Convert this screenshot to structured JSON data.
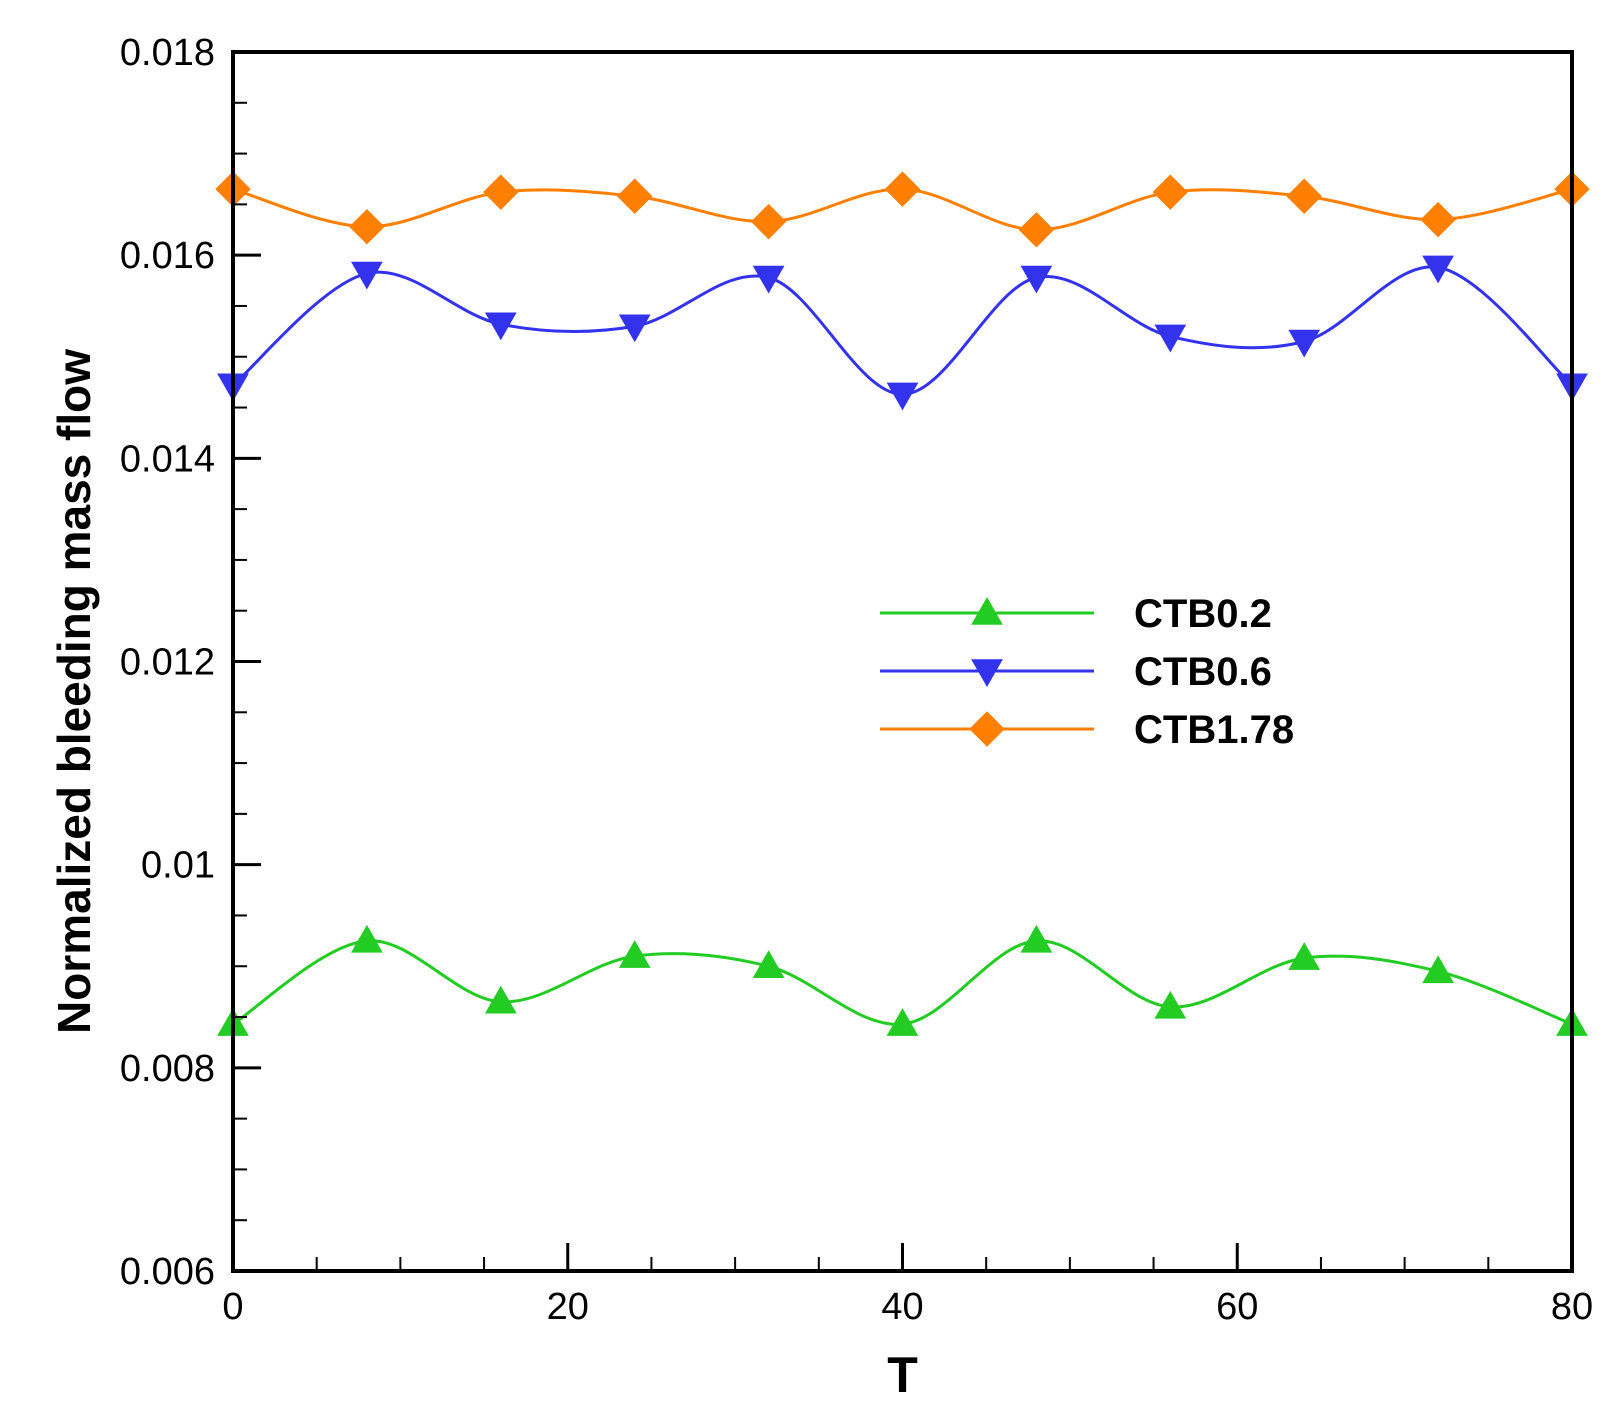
{
  "chart_data": {
    "type": "line",
    "title": "",
    "xlabel": "T",
    "ylabel": "Normalized bleeding mass flow",
    "xlim": [
      0,
      80
    ],
    "ylim": [
      0.006,
      0.018
    ],
    "x_ticks": [
      0,
      20,
      40,
      60,
      80
    ],
    "x_tick_labels": [
      "0",
      "20",
      "40",
      "60",
      "80"
    ],
    "y_ticks": [
      0.006,
      0.008,
      0.01,
      0.012,
      0.014,
      0.016,
      0.018
    ],
    "y_tick_labels": [
      "0.006",
      "0.008",
      "0.01",
      "0.012",
      "0.014",
      "0.016",
      "0.018"
    ],
    "x_minor_step": 5,
    "y_minor_step": 0.0005,
    "grid": false,
    "legend_position": "center-right",
    "x": [
      0,
      8,
      16,
      24,
      32,
      40,
      48,
      56,
      64,
      72,
      80
    ],
    "series": [
      {
        "name": "CTB0.2",
        "color": "#22cc22",
        "marker": "triangle-up",
        "values": [
          0.00843,
          0.00925,
          0.00865,
          0.0091,
          0.009,
          0.00843,
          0.00925,
          0.0086,
          0.00908,
          0.00895,
          0.00843
        ]
      },
      {
        "name": "CTB0.6",
        "color": "#3333ee",
        "marker": "triangle-down",
        "values": [
          0.01472,
          0.01582,
          0.01532,
          0.0153,
          0.01578,
          0.01463,
          0.01578,
          0.0152,
          0.01515,
          0.01588,
          0.01472
        ]
      },
      {
        "name": "CTB1.78",
        "color": "#ff7f00",
        "marker": "diamond",
        "values": [
          0.01665,
          0.01628,
          0.01662,
          0.01658,
          0.01633,
          0.01665,
          0.01625,
          0.01662,
          0.01658,
          0.01635,
          0.01665
        ]
      }
    ]
  }
}
